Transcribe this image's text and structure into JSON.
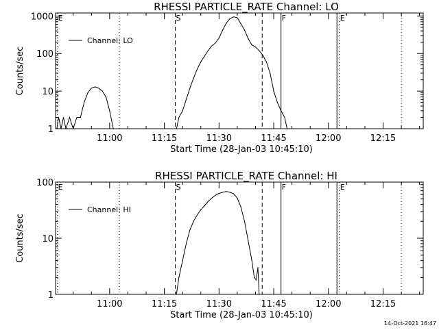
{
  "panels": [
    {
      "chart_data": {
        "type": "line",
        "title": "RHESSI PARTICLE_RATE Channel: LO",
        "xlabel": "Start Time (28-Jan-03 10:45:10)",
        "ylabel": "Counts/sec",
        "y_scale": "log",
        "ylim": [
          1,
          1200
        ],
        "xlim": [
          "10:45:10",
          "12:26:00"
        ],
        "x_tick_labels": [
          "11:00",
          "11:15",
          "11:30",
          "11:45",
          "12:00",
          "12:15"
        ],
        "y_tick_labels": [
          "1000",
          "100",
          "10",
          "1"
        ],
        "legend": "top-left",
        "series": [
          {
            "name": "Channel: LO",
            "x": [
              "10:45:30",
              "10:46:00",
              "10:46:40",
              "10:47:20",
              "10:48:00",
              "10:49:00",
              "10:50:00",
              "10:51:00",
              "10:52:00",
              "10:53:00",
              "10:54:00",
              "10:55:00",
              "10:56:00",
              "10:57:00",
              "10:58:00",
              "10:59:00",
              "11:00:00",
              "11:01:00",
              "11:18:20",
              "11:19:00",
              "11:20:00",
              "11:21:00",
              "11:22:00",
              "11:23:00",
              "11:24:00",
              "11:25:00",
              "11:26:00",
              "11:27:00",
              "11:28:00",
              "11:29:00",
              "11:30:00",
              "11:31:00",
              "11:32:00",
              "11:33:00",
              "11:34:00",
              "11:35:00",
              "11:36:00",
              "11:37:00",
              "11:38:00",
              "11:39:00",
              "11:40:00",
              "11:41:00",
              "11:42:00",
              "11:43:00",
              "11:44:00",
              "11:45:00",
              "11:46:00",
              "11:47:00",
              "11:48:00",
              "11:48:40"
            ],
            "values": [
              1,
              2,
              1,
              2,
              1,
              2,
              1,
              2,
              2,
              5,
              9,
              12,
              13,
              12,
              10,
              7,
              3,
              1,
              1,
              2,
              3,
              6,
              12,
              22,
              38,
              60,
              85,
              120,
              160,
              190,
              260,
              420,
              650,
              850,
              950,
              900,
              620,
              420,
              250,
              170,
              150,
              120,
              90,
              60,
              30,
              10,
              5,
              3,
              2,
              1
            ]
          }
        ],
        "markers": [
          {
            "label": "E",
            "time": "10:45:40",
            "style": "dotted"
          },
          {
            "label": "",
            "time": "11:02:40",
            "style": "dotted"
          },
          {
            "label": "S",
            "time": "11:18:00",
            "style": "dashed"
          },
          {
            "label": "",
            "time": "11:41:50",
            "style": "dashed"
          },
          {
            "label": "F",
            "time": "11:47:00",
            "style": "solid"
          },
          {
            "label": "",
            "time": "12:02:20",
            "style": "solid"
          },
          {
            "label": "E",
            "time": "12:03:00",
            "style": "dotted"
          },
          {
            "label": "",
            "time": "12:20:00",
            "style": "dotted"
          }
        ]
      }
    },
    {
      "chart_data": {
        "type": "line",
        "title": "RHESSI PARTICLE_RATE Channel: HI",
        "xlabel": "Start Time (28-Jan-03 10:45:10)",
        "ylabel": "Counts/sec",
        "y_scale": "log",
        "ylim": [
          1,
          100
        ],
        "xlim": [
          "10:45:10",
          "12:26:00"
        ],
        "x_tick_labels": [
          "11:00",
          "11:15",
          "11:30",
          "11:45",
          "12:00",
          "12:15"
        ],
        "y_tick_labels": [
          "100",
          "10",
          "1"
        ],
        "legend": "top-left",
        "series": [
          {
            "name": "Channel: HI",
            "x": [
              "11:18:20",
              "11:19:00",
              "11:20:00",
              "11:21:00",
              "11:22:00",
              "11:23:00",
              "11:24:00",
              "11:25:00",
              "11:26:00",
              "11:27:00",
              "11:28:00",
              "11:29:00",
              "11:30:00",
              "11:31:00",
              "11:32:00",
              "11:33:00",
              "11:34:00",
              "11:35:00",
              "11:36:00",
              "11:37:00",
              "11:38:00",
              "11:39:00",
              "11:39:40",
              "11:40:10",
              "11:40:40",
              "11:41:00"
            ],
            "values": [
              1,
              2,
              4,
              8,
              14,
              20,
              26,
              32,
              38,
              45,
              52,
              58,
              63,
              66,
              68,
              66,
              62,
              52,
              36,
              20,
              9,
              4,
              2,
              1.8,
              3,
              1
            ]
          }
        ],
        "markers": [
          {
            "label": "E",
            "time": "10:45:40",
            "style": "dotted"
          },
          {
            "label": "",
            "time": "11:02:40",
            "style": "dotted"
          },
          {
            "label": "S",
            "time": "11:18:00",
            "style": "dashed"
          },
          {
            "label": "",
            "time": "11:41:50",
            "style": "dashed"
          },
          {
            "label": "F",
            "time": "11:47:00",
            "style": "solid"
          },
          {
            "label": "",
            "time": "12:02:20",
            "style": "solid"
          },
          {
            "label": "E",
            "time": "12:03:00",
            "style": "dotted"
          },
          {
            "label": "",
            "time": "12:20:00",
            "style": "dotted"
          }
        ]
      }
    }
  ],
  "footer": {
    "timestamp": "14-Oct-2021 16:47"
  }
}
